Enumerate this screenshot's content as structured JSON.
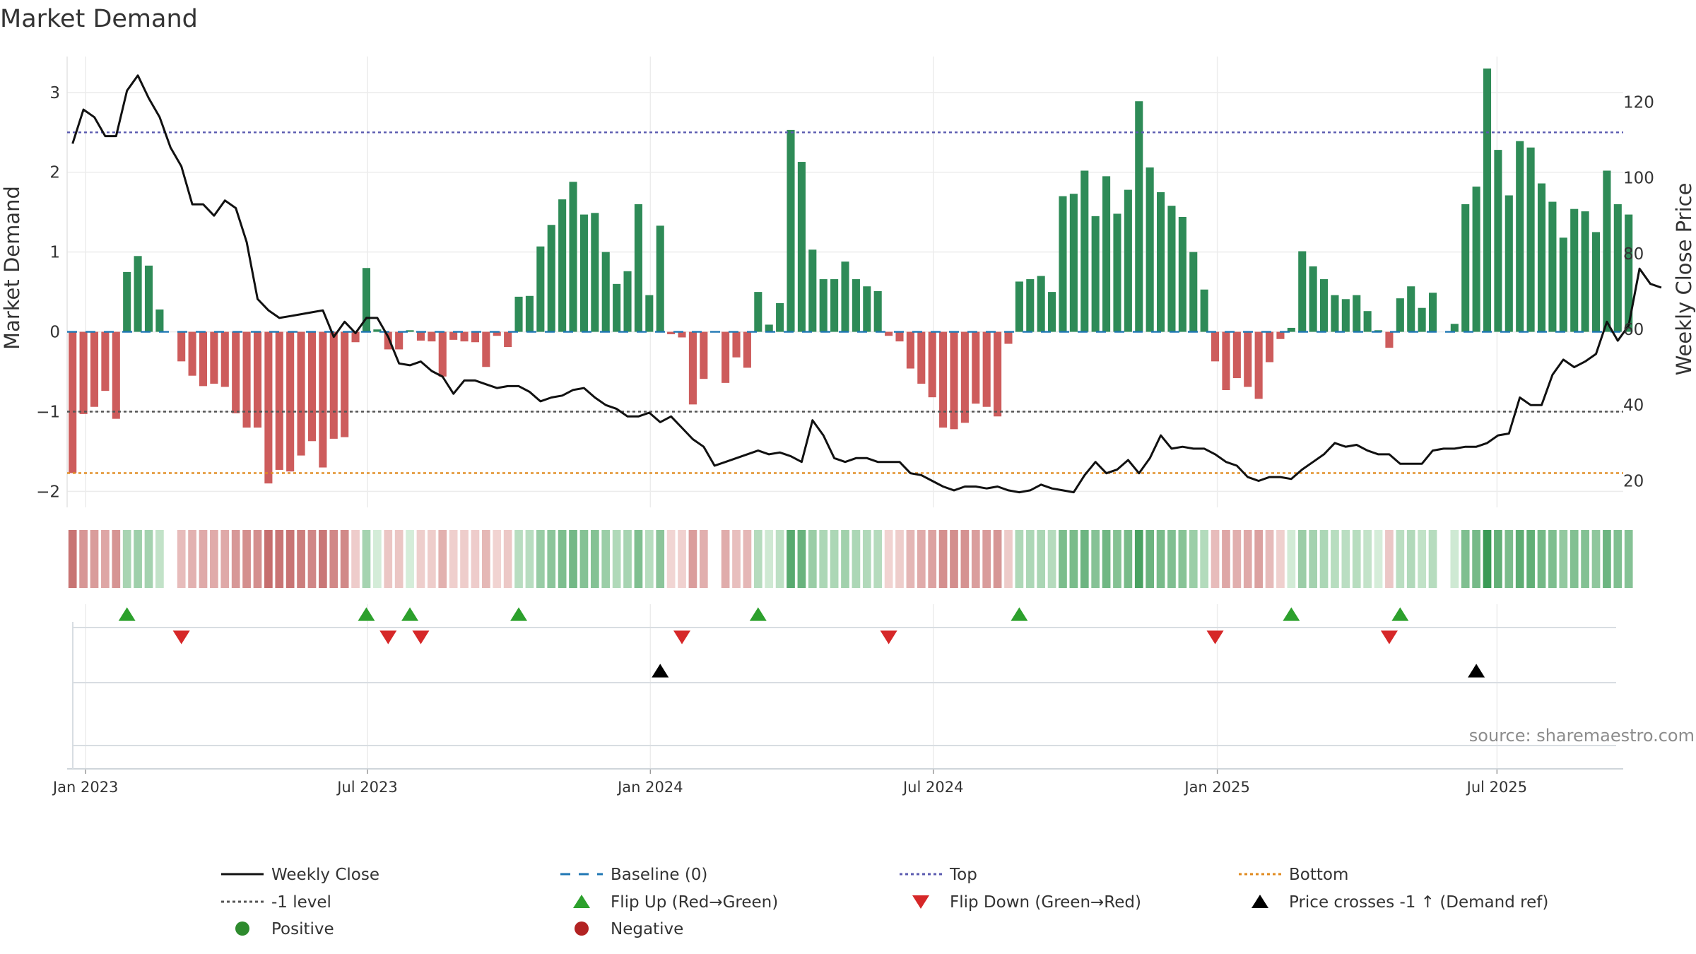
{
  "chart_data": {
    "type": "bar+line",
    "title": "Market Demand",
    "ylabel_left": "Market Demand",
    "ylabel_right": "Weekly Close Price",
    "ylim_left": [
      -2.2,
      3.45
    ],
    "ylim_right": [
      13,
      132
    ],
    "yticks_left": [
      "3",
      "2",
      "1",
      "0",
      "−1",
      "−2"
    ],
    "yticks_left_values": [
      3,
      2,
      1,
      0,
      -1,
      -2
    ],
    "yticks_right": [
      "120",
      "100",
      "80",
      "60",
      "40",
      "20"
    ],
    "yticks_right_values": [
      120,
      100,
      80,
      60,
      40,
      20
    ],
    "x_range_weeks": [
      -0.5,
      142.5
    ],
    "x_ticks": [
      {
        "label": "Jan 2023",
        "week": 1.2
      },
      {
        "label": "Jul 2023",
        "week": 27.1
      },
      {
        "label": "Jan 2024",
        "week": 53.1
      },
      {
        "label": "Jul 2024",
        "week": 79.1
      },
      {
        "label": "Jan 2025",
        "week": 105.2
      },
      {
        "label": "Jul 2025",
        "week": 130.9
      }
    ],
    "reference_levels": {
      "top": 2.5,
      "bottom": -1.77,
      "minus_one": -1,
      "baseline": 0
    },
    "bar_series": {
      "name": "Market Demand",
      "values": [
        -1.77,
        -1.03,
        -0.94,
        -0.74,
        -1.09,
        0.75,
        0.95,
        0.83,
        0.28,
        null,
        -0.37,
        -0.55,
        -0.68,
        -0.65,
        -0.69,
        -1.02,
        -1.2,
        -1.2,
        -1.9,
        -1.73,
        -1.75,
        -1.55,
        -1.37,
        -1.7,
        -1.34,
        -1.32,
        -0.13,
        0.8,
        0.03,
        -0.22,
        -0.22,
        0.02,
        -0.11,
        -0.12,
        -0.56,
        -0.1,
        -0.12,
        -0.13,
        -0.44,
        -0.05,
        -0.19,
        0.44,
        0.45,
        1.07,
        1.34,
        1.66,
        1.88,
        1.47,
        1.49,
        1.0,
        0.6,
        0.76,
        1.6,
        0.46,
        1.33,
        -0.03,
        -0.07,
        -0.91,
        -0.59,
        null,
        -0.64,
        -0.32,
        -0.45,
        0.5,
        0.09,
        0.36,
        2.53,
        2.13,
        1.03,
        0.66,
        0.66,
        0.88,
        0.66,
        0.57,
        0.51,
        -0.05,
        -0.12,
        -0.46,
        -0.65,
        -0.82,
        -1.2,
        -1.22,
        -1.14,
        -0.9,
        -0.94,
        -1.06,
        -0.15,
        0.63,
        0.66,
        0.7,
        0.5,
        1.7,
        1.73,
        2.02,
        1.45,
        1.95,
        1.48,
        1.78,
        2.89,
        2.06,
        1.75,
        1.58,
        1.44,
        1.0,
        0.53,
        -0.37,
        -0.73,
        -0.58,
        -0.69,
        -0.84,
        -0.38,
        -0.09,
        0.05,
        1.01,
        0.82,
        0.66,
        0.46,
        0.41,
        0.46,
        0.26,
        0.02,
        -0.2,
        0.42,
        0.57,
        0.3,
        0.49,
        null,
        0.1,
        1.6,
        1.82,
        3.3,
        2.28,
        1.71,
        2.39,
        2.31,
        1.86,
        1.63,
        1.18,
        1.54,
        1.51,
        1.25,
        2.02,
        1.6,
        1.47
      ]
    },
    "line_series": {
      "name": "Weekly Close",
      "values": [
        109,
        118,
        116,
        111,
        111,
        123,
        127,
        121,
        116,
        108,
        103,
        93,
        93,
        90,
        94,
        92,
        83,
        68,
        65,
        63,
        63.5,
        64,
        64.5,
        65,
        58,
        62,
        59,
        63,
        63,
        58,
        51,
        50.5,
        51.5,
        49,
        47.5,
        43,
        46.5,
        46.5,
        45.5,
        44.5,
        45,
        45,
        43.5,
        41,
        42,
        42.5,
        44,
        44.5,
        42,
        40,
        39,
        37,
        37,
        38,
        35.5,
        37,
        34,
        31,
        29,
        24,
        25,
        26,
        27,
        28,
        27,
        27.5,
        26.5,
        25,
        36,
        32,
        26,
        25,
        26,
        26,
        25,
        25,
        25,
        22,
        21.5,
        20,
        18.5,
        17.5,
        18.5,
        18.5,
        18,
        18.5,
        17.5,
        17,
        17.5,
        19,
        18,
        17.5,
        17,
        21.5,
        25,
        22,
        23,
        25.5,
        22,
        26,
        32,
        28.5,
        29,
        28.5,
        28.5,
        27,
        25,
        24,
        21,
        20,
        21,
        21,
        20.5,
        23,
        25,
        27,
        30,
        29,
        29.5,
        28,
        27,
        27,
        24.5,
        24.5,
        24.5,
        28,
        28.5,
        28.5,
        29,
        29,
        30,
        32,
        32.5,
        42,
        40,
        40,
        48,
        52,
        50,
        51.5,
        53.5,
        62,
        57,
        61,
        76,
        72,
        71
      ]
    },
    "flip_up_weeks": [
      5,
      27,
      31,
      41,
      63,
      87,
      112,
      122
    ],
    "flip_down_weeks": [
      10,
      29,
      32,
      56,
      75,
      105,
      121
    ],
    "price_cross_weeks": [
      54,
      129
    ],
    "status_strip": "weekly colored tiles: green shades for positive demand, red shades for negative, intensity by magnitude",
    "legend": [
      {
        "label": "Weekly Close",
        "style": "solid-black"
      },
      {
        "label": "Baseline (0)",
        "style": "dashed-blue"
      },
      {
        "label": "Top",
        "style": "dotted-purple"
      },
      {
        "label": "Bottom",
        "style": "dotted-orange"
      },
      {
        "label": "-1 level",
        "style": "dotted-gray"
      },
      {
        "label": "Flip Up (Red→Green)",
        "style": "triangle-up-green"
      },
      {
        "label": "Flip Down (Green→Red)",
        "style": "triangle-down-red"
      },
      {
        "label": "Price crosses -1 ↑ (Demand ref)",
        "style": "triangle-up-black"
      },
      {
        "label": "Positive",
        "style": "dot-green"
      },
      {
        "label": "Negative",
        "style": "dot-red"
      }
    ],
    "source": "source: sharemaestro.com"
  },
  "colors": {
    "positive_bar": "#2e8b57",
    "negative_bar": "#cd5c5c",
    "price_line": "#111111",
    "baseline": "#1f77b4",
    "top_line": "#5b5bb0",
    "bottom_line": "#e08a1e",
    "minus_one_line": "#555555",
    "flip_up": "#2ca02c",
    "flip_down": "#d62728",
    "price_cross": "#000000",
    "positive_dot": "#2e8b2e",
    "negative_dot": "#b22222"
  }
}
